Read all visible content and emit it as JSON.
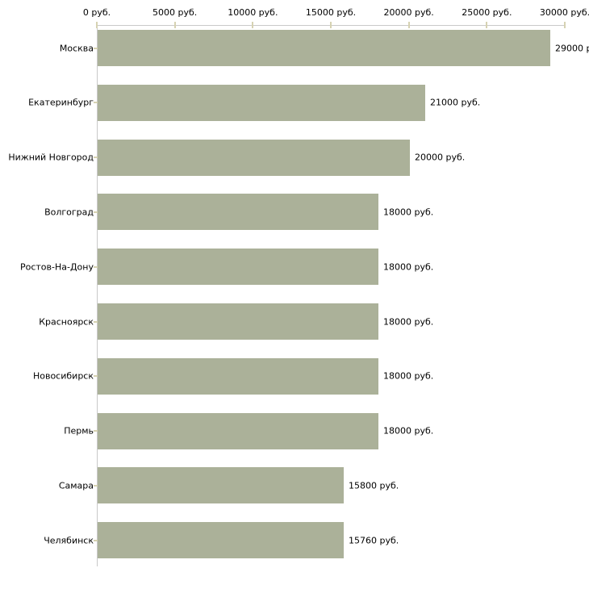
{
  "chart_data": {
    "type": "bar",
    "orientation": "horizontal",
    "title": "",
    "xlabel": "",
    "ylabel": "",
    "xlim": [
      0,
      30000
    ],
    "grid": false,
    "legend": false,
    "x_ticks": [
      {
        "value": 0,
        "label": "0 руб."
      },
      {
        "value": 5000,
        "label": "5000 руб."
      },
      {
        "value": 10000,
        "label": "10000 руб."
      },
      {
        "value": 15000,
        "label": "15000 руб."
      },
      {
        "value": 20000,
        "label": "20000 руб."
      },
      {
        "value": 25000,
        "label": "25000 руб."
      },
      {
        "value": 30000,
        "label": "30000 руб."
      }
    ],
    "categories": [
      "Москва",
      "Екатеринбург",
      "Нижний Новгород",
      "Волгоград",
      "Ростов-На-Дону",
      "Красноярск",
      "Новосибирск",
      "Пермь",
      "Самара",
      "Челябинск"
    ],
    "values": [
      29000,
      21000,
      20000,
      18000,
      18000,
      18000,
      18000,
      18000,
      15800,
      15760
    ],
    "value_labels": [
      "29000 р",
      "21000 руб.",
      "20000 руб.",
      "18000 руб.",
      "18000 руб.",
      "18000 руб.",
      "18000 руб.",
      "18000 руб.",
      "15800 руб.",
      "15760 руб."
    ]
  },
  "colors": {
    "bar": "#abb199",
    "axis_line": "#c9c9c9",
    "tick": "#d6d2b2",
    "text": "#000000",
    "background": "#ffffff"
  }
}
